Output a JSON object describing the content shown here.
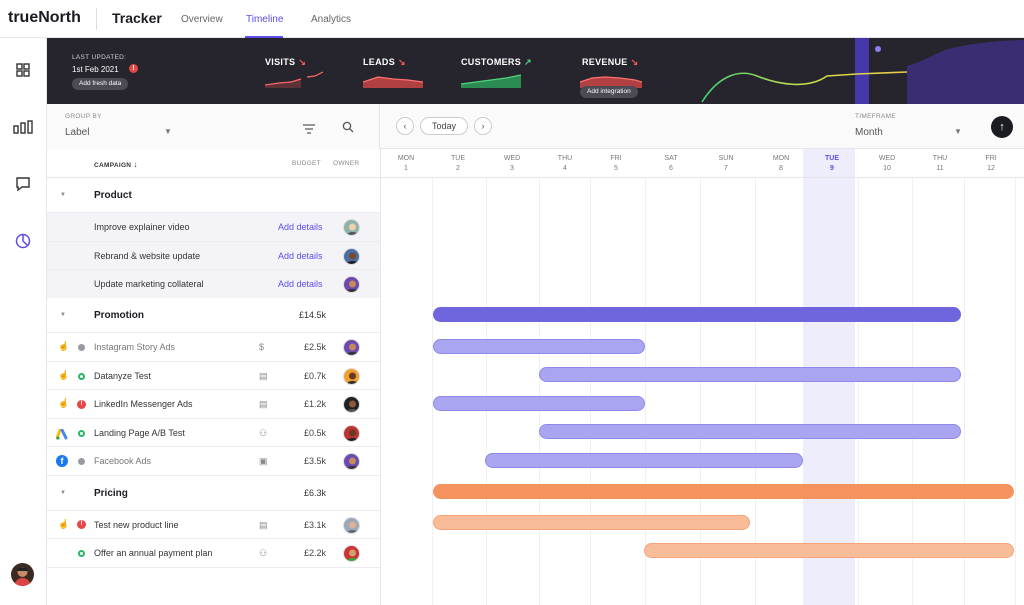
{
  "topbar": {
    "logo": "trueNorth",
    "app_name": "Tracker",
    "nav": [
      "Overview",
      "Timeline",
      "Analytics"
    ],
    "active_nav": "Timeline",
    "accent": "#5b4ee8"
  },
  "rail": {
    "icons": [
      "grid-icon",
      "bar-chart-icon",
      "chat-icon",
      "pie-chart-icon"
    ]
  },
  "banner": {
    "last_updated_label": "LAST UPDATED:",
    "last_updated_date": "1st Feb 2021",
    "alert": "!",
    "add_fresh": "Add fresh data",
    "metrics": [
      {
        "label": "VISITS",
        "trend": "down"
      },
      {
        "label": "LEADS",
        "trend": "down"
      },
      {
        "label": "CUSTOMERS",
        "trend": "up"
      },
      {
        "label": "REVENUE",
        "trend": "down"
      }
    ],
    "add_integration": "Add integration"
  },
  "toolbar": {
    "group_by_label": "GROUP BY",
    "group_by_value": "Label",
    "today": "Today",
    "timeframe_label": "TIMEFRAME",
    "timeframe_value": "Month"
  },
  "table": {
    "headers": {
      "campaign": "CAMPAIGN",
      "budget": "BUDGET",
      "owner": "OWNER"
    },
    "add_details": "Add details"
  },
  "days": [
    {
      "name": "MON",
      "num": "1"
    },
    {
      "name": "TUE",
      "num": "2"
    },
    {
      "name": "WED",
      "num": "3"
    },
    {
      "name": "THU",
      "num": "4"
    },
    {
      "name": "FRI",
      "num": "5"
    },
    {
      "name": "SAT",
      "num": "6"
    },
    {
      "name": "SUN",
      "num": "7"
    },
    {
      "name": "MON",
      "num": "8"
    },
    {
      "name": "TUE",
      "num": "9"
    },
    {
      "name": "WED",
      "num": "10"
    },
    {
      "name": "THU",
      "num": "11"
    },
    {
      "name": "FRI",
      "num": "12"
    }
  ],
  "groups": {
    "product": {
      "name": "Product"
    },
    "promotion": {
      "name": "Promotion",
      "budget": "£14.5k"
    },
    "pricing": {
      "name": "Pricing",
      "budget": "£6.3k"
    }
  },
  "items": {
    "p1": "Improve explainer video",
    "p2": "Rebrand & website update",
    "p3": "Update marketing collateral",
    "m1": {
      "name": "Instagram Story Ads",
      "budget": "£2.5k"
    },
    "m2": {
      "name": "Datanyze Test",
      "budget": "£0.7k"
    },
    "m3": {
      "name": "LinkedIn Messenger Ads",
      "budget": "£1.2k"
    },
    "m4": {
      "name": "Landing Page A/B Test",
      "budget": "£0.5k"
    },
    "m5": {
      "name": "Facebook Ads",
      "budget": "£3.5k"
    },
    "r1": {
      "name": "Test new product line",
      "budget": "£3.1k"
    },
    "r2": {
      "name": "Offer an annual payment plan",
      "budget": "£2.2k"
    }
  }
}
